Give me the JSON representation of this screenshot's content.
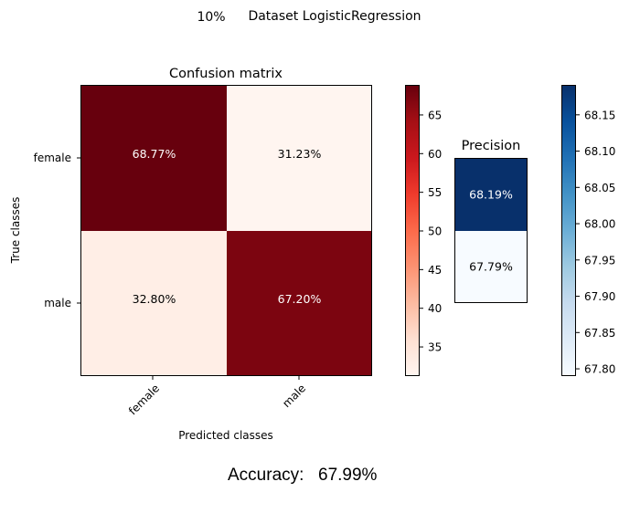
{
  "figure": {
    "suptitle_prefix": "10%",
    "suptitle": "Dataset LogisticRegression",
    "accuracy_label": "Accuracy:",
    "accuracy_value": "67.99%"
  },
  "chart_data": [
    {
      "type": "heatmap",
      "title": "Confusion matrix",
      "xlabel": "Predicted classes",
      "ylabel": "True classes",
      "x_categories": [
        "female",
        "male"
      ],
      "y_categories": [
        "female",
        "male"
      ],
      "values": [
        [
          68.77,
          31.23
        ],
        [
          32.8,
          67.2
        ]
      ],
      "cell_labels": [
        [
          "68.77%",
          "31.23%"
        ],
        [
          "32.80%",
          "67.20%"
        ]
      ],
      "colormap": "Reds",
      "colorbar": {
        "range": [
          31.23,
          68.77
        ],
        "ticks": [
          35,
          40,
          45,
          50,
          55,
          60,
          65
        ]
      }
    },
    {
      "type": "heatmap",
      "title": "Precision",
      "values": [
        68.19,
        67.79
      ],
      "cell_labels": [
        "68.19%",
        "67.79%"
      ],
      "colormap": "Blues",
      "colorbar": {
        "range": [
          67.79,
          68.19
        ],
        "ticks": [
          67.8,
          67.85,
          67.9,
          67.95,
          68.0,
          68.05,
          68.1,
          68.15
        ],
        "tick_labels": [
          "67.80",
          "67.85",
          "67.90",
          "67.95",
          "68.00",
          "68.05",
          "68.10",
          "68.15"
        ]
      }
    }
  ],
  "colors": {
    "reds_dark": "#67000d",
    "blues_dark": "#08306b",
    "text_light": "#ffffff",
    "text_dark": "#000000"
  }
}
